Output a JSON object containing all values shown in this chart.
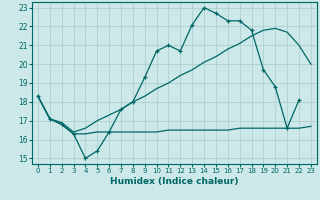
{
  "xlabel": "Humidex (Indice chaleur)",
  "background_color": "#cce8e8",
  "grid_color": "#aacccc",
  "line_color": "#006666",
  "xlim": [
    -0.5,
    23.5
  ],
  "ylim": [
    14.7,
    23.3
  ],
  "yticks": [
    15,
    16,
    17,
    18,
    19,
    20,
    21,
    22,
    23
  ],
  "xticks": [
    0,
    1,
    2,
    3,
    4,
    5,
    6,
    7,
    8,
    9,
    10,
    11,
    12,
    13,
    14,
    15,
    16,
    17,
    18,
    19,
    20,
    21,
    22,
    23
  ],
  "line1_x": [
    0,
    1,
    2,
    3,
    4,
    5,
    6,
    7,
    8,
    9,
    10,
    11,
    12,
    13,
    14,
    15,
    16,
    17,
    18,
    19,
    20,
    21,
    22
  ],
  "line1_y": [
    18.3,
    17.1,
    16.8,
    16.3,
    15.0,
    15.4,
    16.4,
    17.6,
    18.0,
    19.3,
    20.7,
    21.0,
    20.7,
    22.1,
    23.0,
    22.7,
    22.3,
    22.3,
    21.8,
    19.7,
    18.8,
    16.6,
    18.1
  ],
  "line2_x": [
    0,
    1,
    2,
    3,
    4,
    5,
    6,
    7,
    8,
    9,
    10,
    11,
    12,
    13,
    14,
    15,
    16,
    17,
    18,
    19,
    20,
    21,
    22,
    23
  ],
  "line2_y": [
    18.3,
    17.1,
    16.8,
    16.3,
    16.3,
    16.4,
    16.4,
    16.4,
    16.4,
    16.4,
    16.4,
    16.5,
    16.5,
    16.5,
    16.5,
    16.5,
    16.5,
    16.6,
    16.6,
    16.6,
    16.6,
    16.6,
    16.6,
    16.7
  ],
  "line3_x": [
    0,
    1,
    2,
    3,
    4,
    5,
    6,
    7,
    8,
    9,
    10,
    11,
    12,
    13,
    14,
    15,
    16,
    17,
    18,
    19,
    20,
    21,
    22,
    23
  ],
  "line3_y": [
    18.3,
    17.1,
    16.9,
    16.4,
    16.6,
    17.0,
    17.3,
    17.6,
    18.0,
    18.3,
    18.7,
    19.0,
    19.4,
    19.7,
    20.1,
    20.4,
    20.8,
    21.1,
    21.5,
    21.8,
    21.9,
    21.7,
    21.0,
    20.0
  ]
}
